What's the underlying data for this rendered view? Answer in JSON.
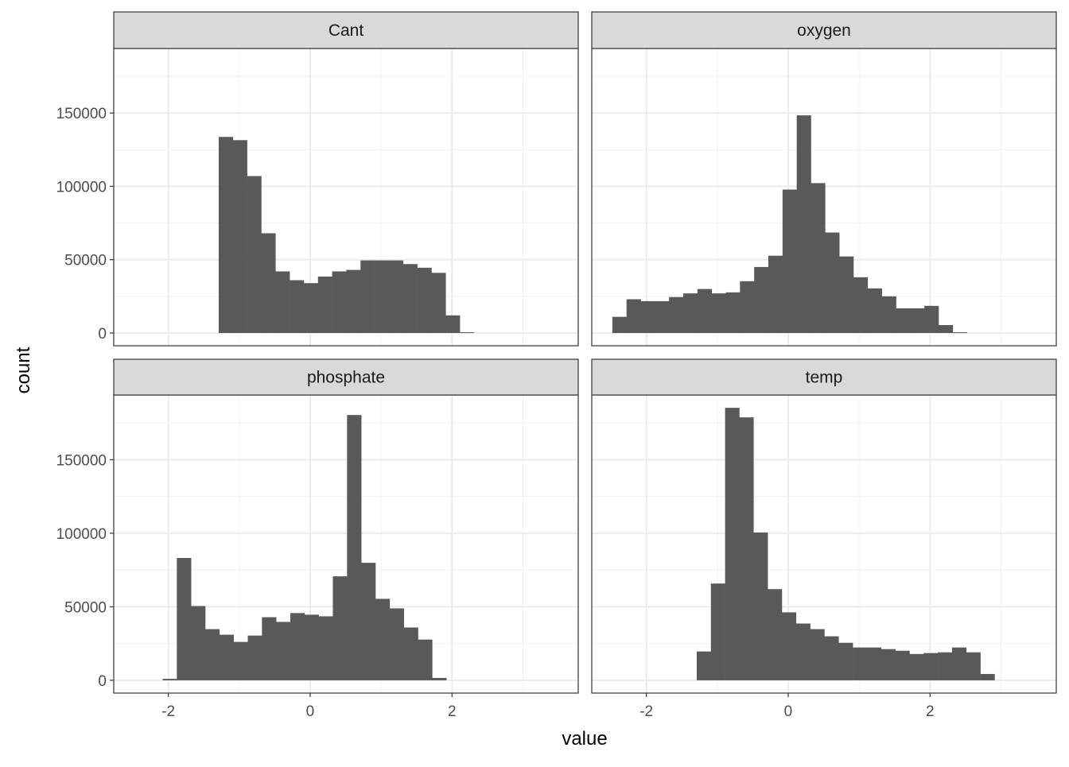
{
  "chart_data": {
    "type": "bar",
    "subtype": "faceted-histogram",
    "xlabel": "value",
    "ylabel": "count",
    "xlim": [
      -2.77,
      3.78
    ],
    "ylim": [
      -8700,
      194000
    ],
    "x_ticks": [
      -2,
      0,
      2
    ],
    "y_ticks": [
      0,
      50000,
      100000,
      150000
    ],
    "grid": true,
    "bar_color": "#595959",
    "bin_width": 0.2,
    "facets": [
      {
        "name": "Cant",
        "bin_start": -1.29,
        "values": [
          133700,
          131500,
          107000,
          68000,
          42000,
          36000,
          34000,
          38500,
          42000,
          43000,
          49500,
          49500,
          49500,
          47000,
          44500,
          41000,
          12000,
          500
        ]
      },
      {
        "name": "oxygen",
        "bin_start": -2.48,
        "values": [
          11000,
          23000,
          21700,
          21700,
          24500,
          27000,
          30000,
          27000,
          27700,
          35300,
          45000,
          52700,
          97800,
          148400,
          102200,
          68500,
          52200,
          38000,
          30400,
          25000,
          16800,
          16800,
          18500,
          5400,
          500
        ]
      },
      {
        "name": "phosphate",
        "bin_start": -2.08,
        "values": [
          1000,
          83200,
          50500,
          34800,
          31000,
          26100,
          30400,
          42900,
          39700,
          45700,
          44600,
          43500,
          70700,
          180400,
          79900,
          55400,
          48900,
          35900,
          27700,
          1600
        ]
      },
      {
        "name": "temp",
        "bin_start": -1.29,
        "values": [
          19600,
          65800,
          185300,
          178800,
          100500,
          62000,
          46200,
          38600,
          34800,
          29900,
          25500,
          22300,
          22300,
          21200,
          20100,
          17900,
          18500,
          19000,
          22300,
          19000,
          4300
        ]
      }
    ]
  }
}
